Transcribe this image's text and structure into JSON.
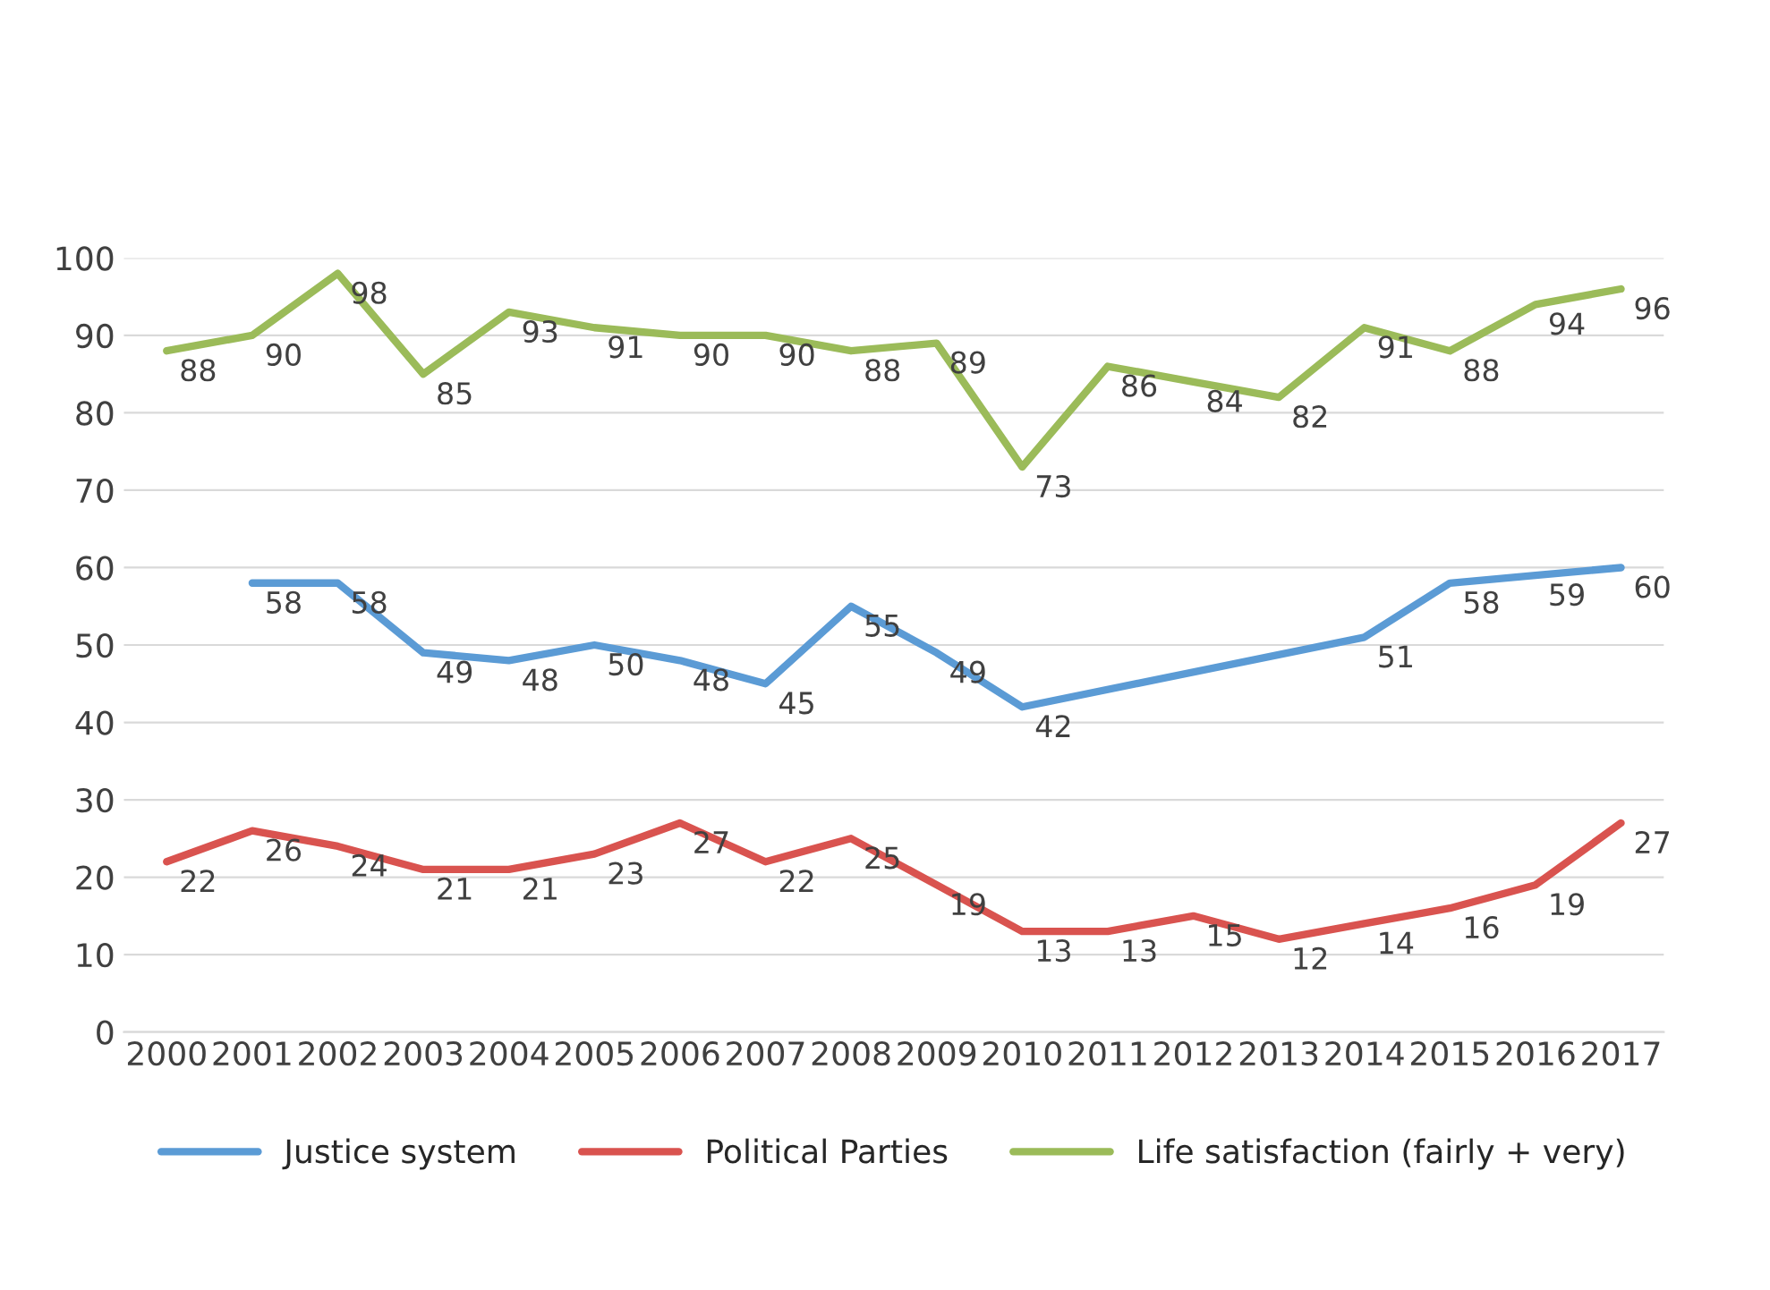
{
  "chart_data": {
    "type": "line",
    "categories": [
      "2000",
      "2001",
      "2002",
      "2003",
      "2004",
      "2005",
      "2006",
      "2007",
      "2008",
      "2009",
      "2010",
      "2011",
      "2012",
      "2013",
      "2014",
      "2015",
      "2016",
      "2017"
    ],
    "series": [
      {
        "name": "Justice system",
        "color": "#5b9bd5",
        "values": [
          null,
          58,
          58,
          49,
          48,
          50,
          48,
          45,
          55,
          49,
          42,
          null,
          null,
          null,
          51,
          58,
          59,
          60
        ]
      },
      {
        "name": "Political Parties",
        "color": "#d9534f",
        "values": [
          22,
          26,
          24,
          21,
          21,
          23,
          27,
          22,
          25,
          19,
          13,
          13,
          15,
          12,
          14,
          16,
          19,
          27
        ]
      },
      {
        "name": "Life satisfaction (fairly + very)",
        "color": "#9bbb59",
        "values": [
          88,
          90,
          98,
          85,
          93,
          91,
          90,
          90,
          88,
          89,
          73,
          86,
          84,
          82,
          91,
          88,
          94,
          96
        ]
      }
    ],
    "ylim": [
      0,
      100
    ],
    "yticks": [
      0,
      10,
      20,
      30,
      40,
      50,
      60,
      70,
      80,
      90,
      100
    ],
    "grid": "y",
    "legend": "bottom",
    "data_labels": true,
    "marker": "none",
    "line_style": "solid"
  }
}
